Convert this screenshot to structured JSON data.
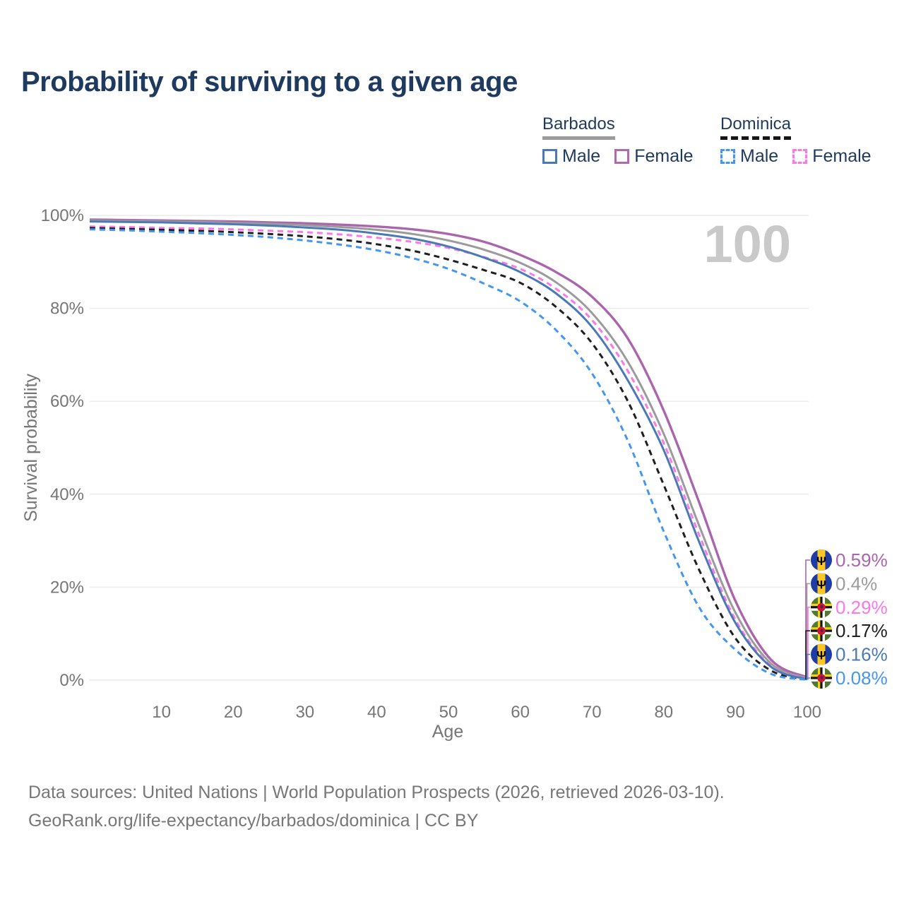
{
  "title": "Probability of surviving to a given age",
  "watermark": "100",
  "legend": {
    "groups": [
      {
        "name": "Barbados",
        "line_style": "solid",
        "line_color": "#9b9b9b",
        "items": [
          {
            "label": "Male",
            "color": "#4a7ab5"
          },
          {
            "label": "Female",
            "color": "#b168ae"
          }
        ]
      },
      {
        "name": "Dominica",
        "line_style": "dashed",
        "line_color": "#161616",
        "items": [
          {
            "label": "Male",
            "color": "#4496f0"
          },
          {
            "label": "Female",
            "color": "#fb78e8"
          }
        ]
      }
    ]
  },
  "chart_data": {
    "type": "line",
    "title": "Probability of surviving to a given age",
    "xlabel": "Age",
    "ylabel": "Survival probability",
    "xlim": [
      0,
      100
    ],
    "ylim": [
      0,
      100
    ],
    "x_ticks": [
      10,
      20,
      30,
      40,
      50,
      60,
      70,
      80,
      90,
      100
    ],
    "y_ticks": [
      0,
      20,
      40,
      60,
      80,
      100
    ],
    "y_tick_suffix": "%",
    "grid": "horizontal",
    "legend_position": "top-right",
    "age_counter": "100",
    "x": [
      0,
      5,
      10,
      15,
      20,
      25,
      30,
      35,
      40,
      45,
      50,
      55,
      60,
      65,
      70,
      75,
      80,
      85,
      90,
      95,
      100
    ],
    "series": [
      {
        "name": "Barbados Female",
        "country": "Barbados",
        "sex": "Female",
        "color": "#aa65ad",
        "dashed": false,
        "flag": "barbados",
        "end_label": "0.59%",
        "values": [
          99.1,
          99.0,
          98.9,
          98.8,
          98.7,
          98.5,
          98.3,
          98.0,
          97.6,
          97.0,
          96.0,
          94.3,
          91.5,
          87.8,
          82.5,
          73.5,
          58.0,
          38.0,
          17.0,
          4.3,
          0.59
        ]
      },
      {
        "name": "Barbados Both sexes",
        "country": "Barbados",
        "sex": "Both",
        "color": "#9b9b9b",
        "dashed": false,
        "flag": "barbados",
        "end_label": "0.4%",
        "values": [
          98.9,
          98.8,
          98.7,
          98.6,
          98.4,
          98.2,
          97.9,
          97.5,
          96.9,
          96.0,
          94.6,
          92.6,
          89.8,
          85.6,
          79.0,
          68.5,
          53.0,
          33.0,
          14.5,
          3.5,
          0.4
        ]
      },
      {
        "name": "Dominica Female",
        "country": "Dominica",
        "sex": "Female",
        "color": "#fb78e8",
        "dashed": true,
        "flag": "dominica",
        "end_label": "0.29%",
        "values": [
          97.6,
          97.5,
          97.3,
          97.2,
          97.0,
          96.7,
          96.4,
          95.9,
          95.2,
          94.3,
          93.0,
          91.0,
          88.5,
          84.2,
          77.5,
          66.5,
          51.0,
          31.0,
          13.0,
          3.0,
          0.29
        ]
      },
      {
        "name": "Dominica Both sexes",
        "country": "Dominica",
        "sex": "Both",
        "color": "#1f1f1f",
        "dashed": true,
        "flag": "dominica",
        "end_label": "0.17%",
        "values": [
          97.3,
          97.1,
          96.9,
          96.7,
          96.4,
          96.0,
          95.5,
          94.8,
          93.8,
          92.4,
          90.5,
          88.2,
          85.5,
          80.3,
          72.5,
          60.0,
          42.0,
          23.5,
          9.0,
          2.0,
          0.17
        ]
      },
      {
        "name": "Barbados Male",
        "country": "Barbados",
        "sex": "Male",
        "color": "#4a7ab5",
        "dashed": false,
        "flag": "barbados",
        "end_label": "0.16%",
        "values": [
          98.7,
          98.6,
          98.5,
          98.3,
          98.1,
          97.8,
          97.4,
          96.9,
          96.1,
          95.0,
          93.3,
          90.9,
          87.8,
          83.2,
          76.0,
          64.5,
          49.5,
          29.5,
          12.3,
          2.8,
          0.16
        ]
      },
      {
        "name": "Dominica Male",
        "country": "Dominica",
        "sex": "Male",
        "color": "#4496f0",
        "dashed": true,
        "flag": "dominica",
        "end_label": "0.08%",
        "values": [
          97.0,
          96.8,
          96.5,
          96.2,
          95.8,
          95.3,
          94.6,
          93.7,
          92.5,
          90.8,
          88.5,
          85.3,
          81.5,
          75.3,
          66.0,
          51.5,
          32.0,
          15.5,
          6.5,
          1.3,
          0.08
        ]
      }
    ]
  },
  "footer": {
    "line1": "Data sources: United Nations | World Population Prospects (2026, retrieved 2026-03-10).",
    "line2": "GeoRank.org/life-expectancy/barbados/dominica | CC BY"
  },
  "colors": {
    "title": "#1e3a5f",
    "axis_text": "#767676",
    "gridline": "#ececec",
    "watermark": "#c9c9c9"
  }
}
